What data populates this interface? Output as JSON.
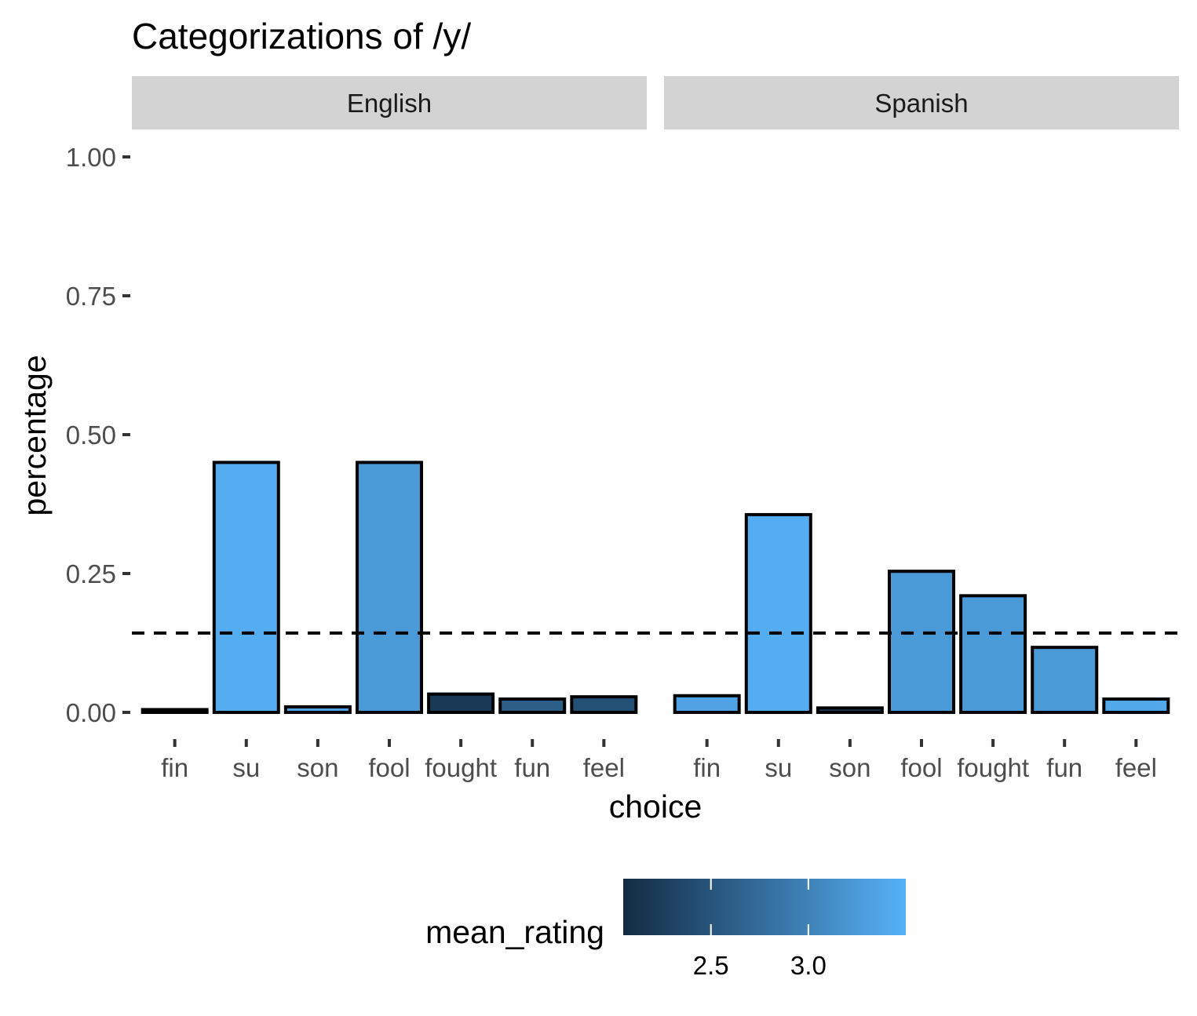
{
  "chart_data": {
    "type": "bar",
    "title": "Categorizations of /y/",
    "xlabel": "choice",
    "ylabel": "percentage",
    "ylim": [
      0,
      1
    ],
    "yticks": [
      "0.00",
      "0.25",
      "0.50",
      "0.75",
      "1.00"
    ],
    "ytick_values": [
      0,
      0.25,
      0.5,
      0.75,
      1.0
    ],
    "reference_line": {
      "y": 0.1429,
      "style": "dashed"
    },
    "categories": [
      "fin",
      "su",
      "son",
      "fool",
      "fought",
      "fun",
      "feel"
    ],
    "panels": [
      {
        "name": "English",
        "values": [
          0.005,
          0.45,
          0.01,
          0.45,
          0.033,
          0.024,
          0.028
        ],
        "mean_rating": [
          2.1,
          3.45,
          3.35,
          3.25,
          2.2,
          2.6,
          2.45
        ]
      },
      {
        "name": "Spanish",
        "values": [
          0.03,
          0.356,
          0.008,
          0.254,
          0.21,
          0.117,
          0.024
        ],
        "mean_rating": [
          3.35,
          3.45,
          2.2,
          3.25,
          3.25,
          3.25,
          3.4
        ]
      }
    ],
    "legend": {
      "title": "mean_rating",
      "position": "bottom",
      "range": [
        2.05,
        3.5
      ],
      "ticks": [
        "2.5",
        "3.0"
      ],
      "tick_values": [
        2.5,
        3.0
      ],
      "color_low": "#132B43",
      "color_high": "#56B1F7"
    },
    "colors": {
      "strip_background": "#d3d3d3",
      "bar_outline": "#000000",
      "background": "#ffffff"
    }
  }
}
